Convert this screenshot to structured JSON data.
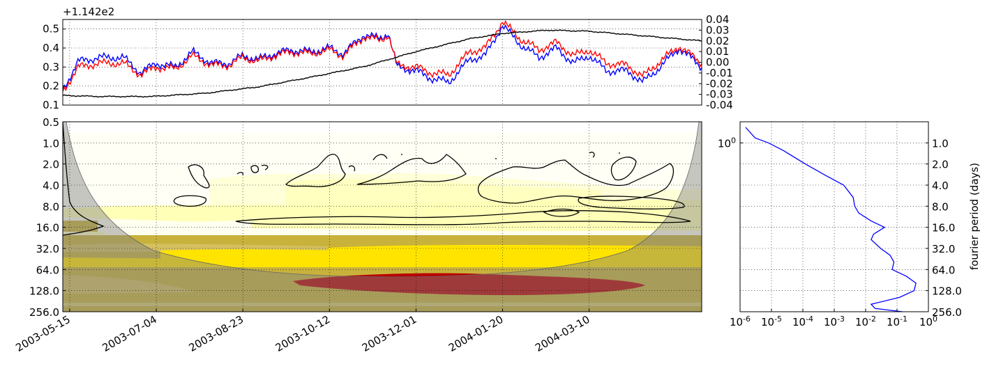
{
  "chart_data": [
    {
      "type": "line",
      "panel": "timeseries",
      "offset_text": "+1.142e2",
      "xlim": [
        "2003-05-11",
        "2004-05-14"
      ],
      "ylim_left": [
        0.1,
        0.55
      ],
      "yticks_left": [
        "0.1",
        "0.2",
        "0.3",
        "0.4",
        "0.5"
      ],
      "ylim_right": [
        -0.04,
        0.04
      ],
      "yticks_right": [
        "0.04",
        "0.03",
        "0.02",
        "0.01",
        "0.00",
        "-0.01",
        "-0.02",
        "-0.03",
        "-0.04"
      ],
      "grid": true,
      "series": [
        {
          "color": "#0000ff",
          "axis": "left",
          "x": [
            "2003-05-11",
            "2003-05-20",
            "2003-06-01",
            "2003-06-15",
            "2003-06-25",
            "2003-07-04",
            "2003-07-15",
            "2003-07-25",
            "2003-08-05",
            "2003-08-15",
            "2003-08-23",
            "2003-09-01",
            "2003-09-10",
            "2003-09-20",
            "2003-10-01",
            "2003-10-12",
            "2003-10-20",
            "2003-11-01",
            "2003-11-10",
            "2003-11-15",
            "2003-11-20",
            "2003-12-01",
            "2003-12-10",
            "2003-12-20",
            "2004-01-01",
            "2004-01-10",
            "2004-01-20",
            "2004-01-30",
            "2004-02-10",
            "2004-02-20",
            "2004-03-01",
            "2004-03-10",
            "2004-03-20",
            "2004-04-01",
            "2004-04-10",
            "2004-04-20",
            "2004-05-01",
            "2004-05-14"
          ],
          "values": [
            0.18,
            0.33,
            0.35,
            0.35,
            0.27,
            0.32,
            0.3,
            0.38,
            0.32,
            0.32,
            0.36,
            0.34,
            0.37,
            0.39,
            0.38,
            0.4,
            0.37,
            0.47,
            0.45,
            0.48,
            0.3,
            0.28,
            0.24,
            0.22,
            0.34,
            0.36,
            0.52,
            0.42,
            0.35,
            0.4,
            0.32,
            0.36,
            0.28,
            0.28,
            0.22,
            0.3,
            0.4,
            0.3
          ]
        },
        {
          "color": "#ff0000",
          "axis": "left",
          "x": [
            "2003-05-11",
            "2003-05-20",
            "2003-06-01",
            "2003-06-15",
            "2003-06-25",
            "2003-07-04",
            "2003-07-15",
            "2003-07-25",
            "2003-08-05",
            "2003-08-15",
            "2003-08-23",
            "2003-09-01",
            "2003-09-10",
            "2003-09-20",
            "2003-10-01",
            "2003-10-12",
            "2003-10-20",
            "2003-11-01",
            "2003-11-10",
            "2003-11-15",
            "2003-11-20",
            "2003-12-01",
            "2003-12-10",
            "2003-12-20",
            "2004-01-01",
            "2004-01-10",
            "2004-01-20",
            "2004-01-30",
            "2004-02-10",
            "2004-02-20",
            "2004-03-01",
            "2004-03-10",
            "2004-03-20",
            "2004-04-01",
            "2004-04-10",
            "2004-04-20",
            "2004-05-01",
            "2004-05-14"
          ],
          "values": [
            0.17,
            0.3,
            0.32,
            0.32,
            0.26,
            0.3,
            0.29,
            0.36,
            0.31,
            0.31,
            0.35,
            0.33,
            0.36,
            0.38,
            0.37,
            0.39,
            0.36,
            0.46,
            0.44,
            0.47,
            0.31,
            0.3,
            0.27,
            0.26,
            0.38,
            0.4,
            0.54,
            0.45,
            0.39,
            0.43,
            0.36,
            0.39,
            0.32,
            0.31,
            0.25,
            0.33,
            0.41,
            0.32
          ]
        },
        {
          "color": "#000000",
          "axis": "right",
          "x": [
            "2003-05-11",
            "2003-06-01",
            "2003-07-01",
            "2003-08-01",
            "2003-09-01",
            "2003-10-01",
            "2003-11-01",
            "2003-12-01",
            "2004-01-01",
            "2004-01-20",
            "2004-02-15",
            "2004-03-10",
            "2004-04-01",
            "2004-05-14"
          ],
          "values": [
            -0.031,
            -0.032,
            -0.032,
            -0.029,
            -0.023,
            -0.014,
            -0.004,
            0.01,
            0.022,
            0.027,
            0.03,
            0.029,
            0.026,
            0.02
          ]
        }
      ]
    },
    {
      "type": "heatmap",
      "panel": "wavelet-power",
      "xlim": [
        "2003-05-11",
        "2004-05-14"
      ],
      "xticks": [
        "2003-05-15",
        "2003-07-04",
        "2003-08-23",
        "2003-10-12",
        "2003-12-01",
        "2004-01-20",
        "2004-03-10"
      ],
      "ylim": [
        0.5,
        256.0
      ],
      "yscale": "log2",
      "yticks": [
        "0.5",
        "1.0",
        "2.0",
        "4.0",
        "8.0",
        "16.0",
        "32.0",
        "64.0",
        "128.0",
        "256.0"
      ],
      "colors": [
        "#ffffff",
        "#fffff0",
        "#ffffcc",
        "#ffee00",
        "#c8b23c",
        "#b80000"
      ],
      "cone_of_influence": true,
      "significance_contours": true,
      "grid": true
    },
    {
      "type": "line",
      "panel": "global-spectrum",
      "xscale": "log",
      "xlim": [
        1e-06,
        1
      ],
      "xticks": [
        "10^-6",
        "10^-5",
        "10^-4",
        "10^-3",
        "10^-2",
        "10^-1",
        "10^0"
      ],
      "yscale": "log2",
      "yticks_left": [
        "10^0"
      ],
      "yticks_right": [
        "1.0",
        "2.0",
        "4.0",
        "8.0",
        "16.0",
        "32.0",
        "64.0",
        "128.0",
        "256.0"
      ],
      "ylabel": "fourier period (days)",
      "grid": true,
      "series": [
        {
          "color": "#0000ff",
          "period": [
            0.6,
            0.85,
            1.0,
            1.3,
            2.0,
            3.0,
            4.0,
            6.0,
            8.0,
            10.0,
            13.0,
            16.0,
            20.0,
            24.0,
            32.0,
            40.0,
            50.0,
            64.0,
            80.0,
            100.0,
            128.0,
            160.0,
            200.0,
            230.0,
            256.0
          ],
          "power": [
            1.5e-06,
            3e-06,
            8e-06,
            2.5e-05,
            0.00012,
            0.0006,
            0.002,
            0.004,
            0.0045,
            0.006,
            0.015,
            0.04,
            0.018,
            0.015,
            0.03,
            0.06,
            0.08,
            0.07,
            0.2,
            0.4,
            0.35,
            0.12,
            0.015,
            0.02,
            0.15
          ]
        }
      ]
    }
  ]
}
